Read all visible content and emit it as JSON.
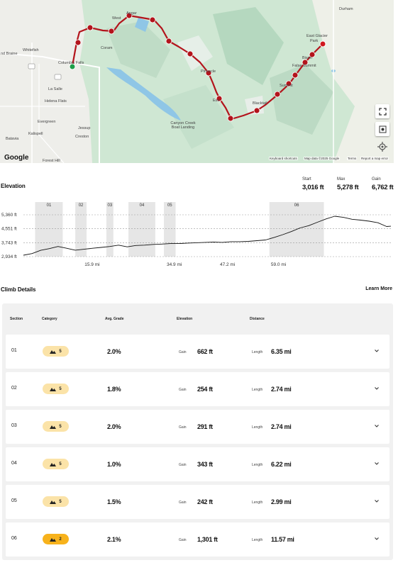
{
  "map": {
    "labels": {
      "durham": "Durham",
      "east_glacier": "East Glacier",
      "park": "Park",
      "whitefish": "Whitefish",
      "bral": "nd Braine",
      "columbia": "Columbia Falls",
      "coram": "Coram",
      "west": "West",
      "apgar": "Apgar",
      "la_salle": "La Salle",
      "helena_flats": "Helena Flats",
      "evergreen": "Evergreen",
      "kalispell": "Kalispell",
      "batavia": "Batavia",
      "jessup": "Jessup",
      "creston": "Creston",
      "canyon_creek": "Canyon Creek Boat Landing",
      "essex": "Ess",
      "bison": "Bison",
      "false_summit": "False Summit",
      "summit": "Summit",
      "blacktail": "Blacktail",
      "firebrick": "Pinnacle",
      "forest_hill": "Forest Hill"
    },
    "route_highway": "93",
    "google_logo": "Google",
    "attribution": {
      "shortcuts": "Keyboard shortcuts",
      "data": "Map data ©2025 Google",
      "terms": "Terms",
      "report": "Report a map error"
    },
    "controls": [
      "fullscreen-icon",
      "street-view-icon",
      "locate-icon"
    ]
  },
  "elevation": {
    "title": "Elevation",
    "stats": [
      {
        "label": "Start",
        "value": "3,016 ft"
      },
      {
        "label": "Max",
        "value": "5,278 ft"
      },
      {
        "label": "Gain",
        "value": "6,762 ft"
      }
    ]
  },
  "chart_data": {
    "type": "area",
    "title": "",
    "y_ticks": [
      "5,360 ft",
      "4,551 ft",
      "3,743 ft",
      "2,934 ft"
    ],
    "y_tick_values": [
      5360,
      4551,
      3743,
      2934
    ],
    "x_ticks": [
      "15.9 mi",
      "34.9 mi",
      "47.2 mi",
      "59.0 mi"
    ],
    "x_tick_values": [
      15.9,
      34.9,
      47.2,
      59.0
    ],
    "xlim": [
      0,
      85.0
    ],
    "ylim": [
      2934,
      5360
    ],
    "grid": "horizontal dashed",
    "climb_zones": [
      {
        "label": "01",
        "start": 2.7,
        "end": 9.1
      },
      {
        "label": "02",
        "start": 12.0,
        "end": 14.6
      },
      {
        "label": "03",
        "start": 19.2,
        "end": 20.8
      },
      {
        "label": "04",
        "start": 24.3,
        "end": 30.5
      },
      {
        "label": "05",
        "start": 32.5,
        "end": 35.2
      },
      {
        "label": "06",
        "start": 56.9,
        "end": 69.5
      }
    ],
    "profile": {
      "x": [
        0,
        2,
        4,
        6,
        8,
        10,
        12,
        14,
        16,
        18,
        20,
        22,
        24,
        26,
        28,
        30,
        32,
        34,
        36,
        38,
        40,
        42,
        44,
        46,
        48,
        50,
        52,
        54,
        56,
        58,
        60,
        62,
        64,
        66,
        68,
        70,
        72,
        74,
        76,
        78,
        80,
        82,
        84,
        85
      ],
      "y": [
        3016,
        3110,
        3300,
        3400,
        3520,
        3420,
        3310,
        3360,
        3420,
        3470,
        3520,
        3600,
        3500,
        3580,
        3600,
        3640,
        3660,
        3690,
        3690,
        3720,
        3740,
        3760,
        3780,
        3760,
        3800,
        3800,
        3820,
        3860,
        3900,
        4050,
        4210,
        4390,
        4600,
        4730,
        4930,
        5120,
        5278,
        5210,
        5100,
        5050,
        4990,
        4900,
        4680,
        4700
      ]
    }
  },
  "climb": {
    "title": "Climb Details",
    "learn_more": "Learn More",
    "columns": {
      "section": "Section",
      "category": "Category",
      "grade": "Avg. Grade",
      "elevation": "Elevation",
      "distance": "Distance"
    },
    "gain_label": "Gain",
    "length_label": "Length",
    "rows": [
      {
        "section": "01",
        "category": "5",
        "grade": "2.0%",
        "gain": "662 ft",
        "length": "6.35 mi"
      },
      {
        "section": "02",
        "category": "5",
        "grade": "1.8%",
        "gain": "254 ft",
        "length": "2.74 mi"
      },
      {
        "section": "03",
        "category": "5",
        "grade": "2.0%",
        "gain": "291 ft",
        "length": "2.74 mi"
      },
      {
        "section": "04",
        "category": "5",
        "grade": "1.0%",
        "gain": "343 ft",
        "length": "6.22 mi"
      },
      {
        "section": "05",
        "category": "5",
        "grade": "1.5%",
        "gain": "242 ft",
        "length": "2.99 mi"
      },
      {
        "section": "06",
        "category": "2",
        "grade": "2.1%",
        "gain": "1,301 ft",
        "length": "11.57 mi"
      }
    ]
  },
  "colors": {
    "route": "#b3141c",
    "start_dot": "#1e9e4a",
    "end_dot": "#d0181f",
    "badge": "#fbe3a8",
    "badge_hot": "#f7b21c"
  }
}
